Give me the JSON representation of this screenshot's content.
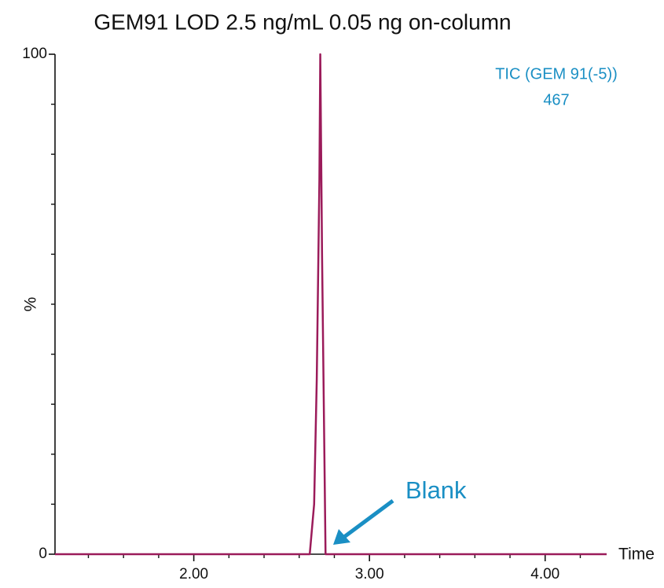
{
  "chart_data": {
    "type": "line",
    "title": "GEM91 LOD 2.5 ng/mL 0.05 ng on-column",
    "x_label": "Time",
    "y_label": "%",
    "annotations": [
      "TIC (GEM 91(-5))",
      "467",
      "Blank"
    ],
    "annotation_color": "#1a8fc4",
    "x": [
      1.21,
      2.66,
      2.685,
      2.7,
      2.715,
      2.72,
      2.73,
      2.75,
      4.35
    ],
    "series": [
      {
        "name": "TIC (GEM 91(-5))",
        "color": "#9b1b5a",
        "values": [
          0,
          0,
          10,
          35,
          75,
          100,
          60,
          0,
          0
        ]
      }
    ],
    "xlim": [
      1.21,
      4.35
    ],
    "xticks": [
      {
        "value": 2,
        "label": "2.00"
      },
      {
        "value": 3,
        "label": "3.00"
      },
      {
        "value": 4,
        "label": "4.00"
      }
    ],
    "xminorticks": [
      1.4,
      1.6,
      1.8,
      2.2,
      2.4,
      2.6,
      2.8,
      3.2,
      3.4,
      3.6,
      3.8,
      4.2
    ],
    "ylim": [
      0,
      100
    ],
    "yticks": [
      0,
      100
    ],
    "yminorticks": [
      10,
      20,
      30,
      40,
      50,
      60,
      70,
      80,
      90
    ]
  }
}
